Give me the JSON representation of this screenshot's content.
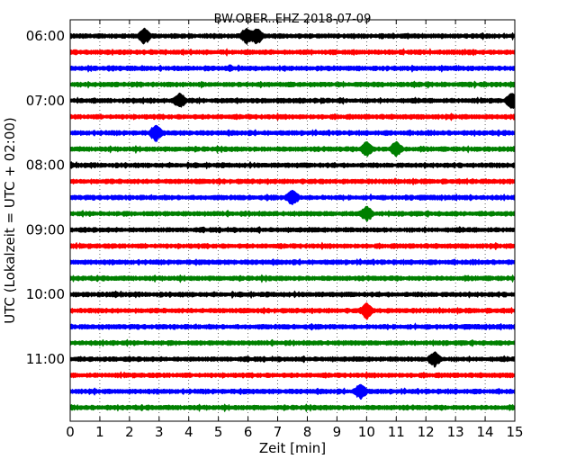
{
  "chart_data": {
    "type": "line",
    "title": "BW.OBER..EHZ 2018-07-09",
    "xlabel": "Zeit  [min]",
    "ylabel": "UTC (Lokalzeit = UTC + 02:00)",
    "xlim": [
      0,
      15
    ],
    "x_ticks": [
      0,
      1,
      2,
      3,
      4,
      5,
      6,
      7,
      8,
      9,
      10,
      11,
      12,
      13,
      14,
      15
    ],
    "x_tick_labels": [
      "0",
      "1",
      "2",
      "3",
      "4",
      "5",
      "6",
      "7",
      "8",
      "9",
      "10",
      "11",
      "12",
      "13",
      "14",
      "15"
    ],
    "grid": "vertical dotted at each minute",
    "row_interval_min": 15,
    "hour_labels": [
      "06:00",
      "07:00",
      "08:00",
      "09:00",
      "10:00",
      "11:00"
    ],
    "hour_label_rows": [
      0,
      4,
      8,
      12,
      16,
      20
    ],
    "trace_colors": [
      "#000000",
      "#ff0000",
      "#0000ff",
      "#008000"
    ],
    "traces": [
      {
        "start": "06:00",
        "color_index": 0
      },
      {
        "start": "06:15",
        "color_index": 1
      },
      {
        "start": "06:30",
        "color_index": 2
      },
      {
        "start": "06:45",
        "color_index": 3
      },
      {
        "start": "07:00",
        "color_index": 0
      },
      {
        "start": "07:15",
        "color_index": 1
      },
      {
        "start": "07:30",
        "color_index": 2
      },
      {
        "start": "07:45",
        "color_index": 3
      },
      {
        "start": "08:00",
        "color_index": 0
      },
      {
        "start": "08:15",
        "color_index": 1
      },
      {
        "start": "08:30",
        "color_index": 2
      },
      {
        "start": "08:45",
        "color_index": 3
      },
      {
        "start": "09:00",
        "color_index": 0
      },
      {
        "start": "09:15",
        "color_index": 1
      },
      {
        "start": "09:30",
        "color_index": 2
      },
      {
        "start": "09:45",
        "color_index": 3
      },
      {
        "start": "10:00",
        "color_index": 0
      },
      {
        "start": "10:15",
        "color_index": 1
      },
      {
        "start": "10:30",
        "color_index": 2
      },
      {
        "start": "10:45",
        "color_index": 3
      },
      {
        "start": "11:00",
        "color_index": 0
      },
      {
        "start": "11:15",
        "color_index": 1
      },
      {
        "start": "11:30",
        "color_index": 2
      },
      {
        "start": "11:45",
        "color_index": 3
      }
    ],
    "events": [
      {
        "trace": 0,
        "minute": 2.5
      },
      {
        "trace": 0,
        "minute": 5.95
      },
      {
        "trace": 0,
        "minute": 6.3
      },
      {
        "trace": 4,
        "minute": 3.7
      },
      {
        "trace": 4,
        "minute": 14.9
      },
      {
        "trace": 6,
        "minute": 2.9
      },
      {
        "trace": 7,
        "minute": 10.0
      },
      {
        "trace": 7,
        "minute": 11.0
      },
      {
        "trace": 10,
        "minute": 7.5
      },
      {
        "trace": 11,
        "minute": 10.0
      },
      {
        "trace": 17,
        "minute": 10.0
      },
      {
        "trace": 20,
        "minute": 12.3
      },
      {
        "trace": 22,
        "minute": 9.8
      }
    ]
  }
}
